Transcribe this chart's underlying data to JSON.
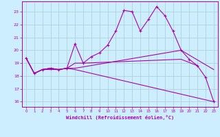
{
  "title": "",
  "xlabel": "Windchill (Refroidissement éolien,°C)",
  "ylabel": "",
  "bg_color": "#cceeff",
  "line_color": "#aa00aa",
  "grid_color": "#aacccc",
  "xlim": [
    -0.5,
    23.5
  ],
  "ylim": [
    15.6,
    23.8
  ],
  "xticks": [
    0,
    1,
    2,
    3,
    4,
    5,
    6,
    7,
    8,
    9,
    10,
    11,
    12,
    13,
    14,
    15,
    16,
    17,
    18,
    19,
    20,
    21,
    22,
    23
  ],
  "yticks": [
    16,
    17,
    18,
    19,
    20,
    21,
    22,
    23
  ],
  "line_main": {
    "x": [
      0,
      1,
      2,
      3,
      4,
      5,
      6,
      7,
      8,
      9,
      10,
      11,
      12,
      13,
      14,
      15,
      16,
      17,
      18,
      19,
      20,
      21,
      22,
      23
    ],
    "y": [
      19.4,
      18.2,
      18.5,
      18.6,
      18.5,
      18.6,
      20.5,
      19.0,
      19.5,
      19.8,
      20.4,
      21.5,
      23.1,
      23.0,
      21.5,
      22.4,
      23.4,
      22.7,
      21.5,
      20.0,
      19.3,
      18.8,
      17.9,
      16.0
    ]
  },
  "line_low": {
    "x": [
      0,
      1,
      2,
      3,
      4,
      5,
      6,
      23
    ],
    "y": [
      19.4,
      18.2,
      18.5,
      18.5,
      18.5,
      18.6,
      18.5,
      16.0
    ]
  },
  "line_mid": {
    "x": [
      0,
      1,
      2,
      3,
      4,
      5,
      6,
      19,
      23
    ],
    "y": [
      19.4,
      18.2,
      18.5,
      18.6,
      18.5,
      18.6,
      18.6,
      20.0,
      18.5
    ]
  },
  "line_high": {
    "x": [
      0,
      1,
      2,
      3,
      4,
      5,
      6,
      7,
      19,
      21
    ],
    "y": [
      19.4,
      18.2,
      18.5,
      18.6,
      18.5,
      18.6,
      19.0,
      19.0,
      19.3,
      18.8
    ]
  }
}
